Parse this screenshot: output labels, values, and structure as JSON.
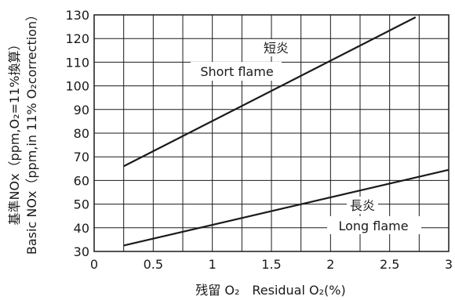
{
  "chart_data": {
    "type": "line",
    "xlabel": "残留 O₂　Residual  O₂(%)",
    "ylabel_line1": "基準NOx（ppm,O₂=11%換算）",
    "ylabel_line2": "Basic NOx（ppm,in 11% O₂correction）",
    "xlim": [
      0,
      3
    ],
    "ylim": [
      30,
      130
    ],
    "x_ticks": [
      "0",
      "0.5",
      "1",
      "1.5",
      "2",
      "2.5",
      "3"
    ],
    "y_ticks": [
      "30",
      "40",
      "50",
      "60",
      "70",
      "80",
      "90",
      "100",
      "110",
      "120",
      "130"
    ],
    "grid": true,
    "series": [
      {
        "name": "短炎 Short flame",
        "label_ja": "短炎",
        "label_en": "Short flame",
        "x": [
          0.25,
          2.72
        ],
        "y": [
          66,
          129
        ]
      },
      {
        "name": "長炎 Long flame",
        "label_ja": "長炎",
        "label_en": "Long flame",
        "x": [
          0.25,
          3.0
        ],
        "y": [
          32.5,
          64.5
        ]
      }
    ]
  }
}
